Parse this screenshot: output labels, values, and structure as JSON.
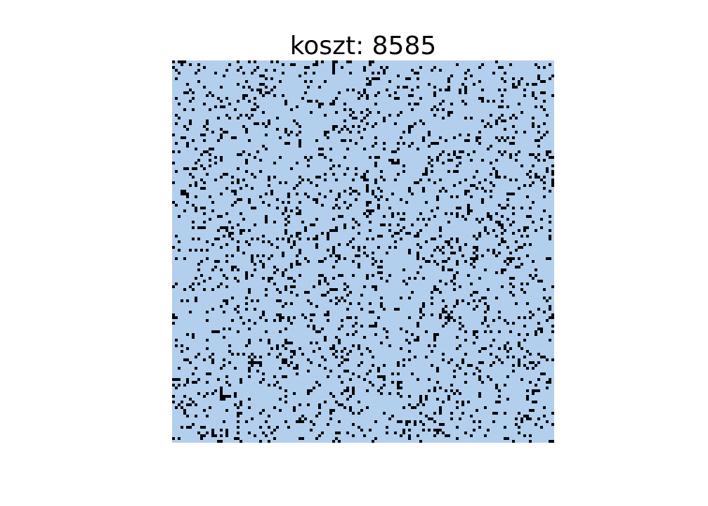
{
  "chart_data": {
    "type": "heatmap",
    "title": "koszt: 8585",
    "grid": false,
    "axes_visible": false,
    "rows": 136,
    "cols": 136,
    "colors": {
      "empty": "#b3cfee",
      "filled": "#000000"
    },
    "fill_fraction": 0.12,
    "pattern_seed": 8585
  }
}
